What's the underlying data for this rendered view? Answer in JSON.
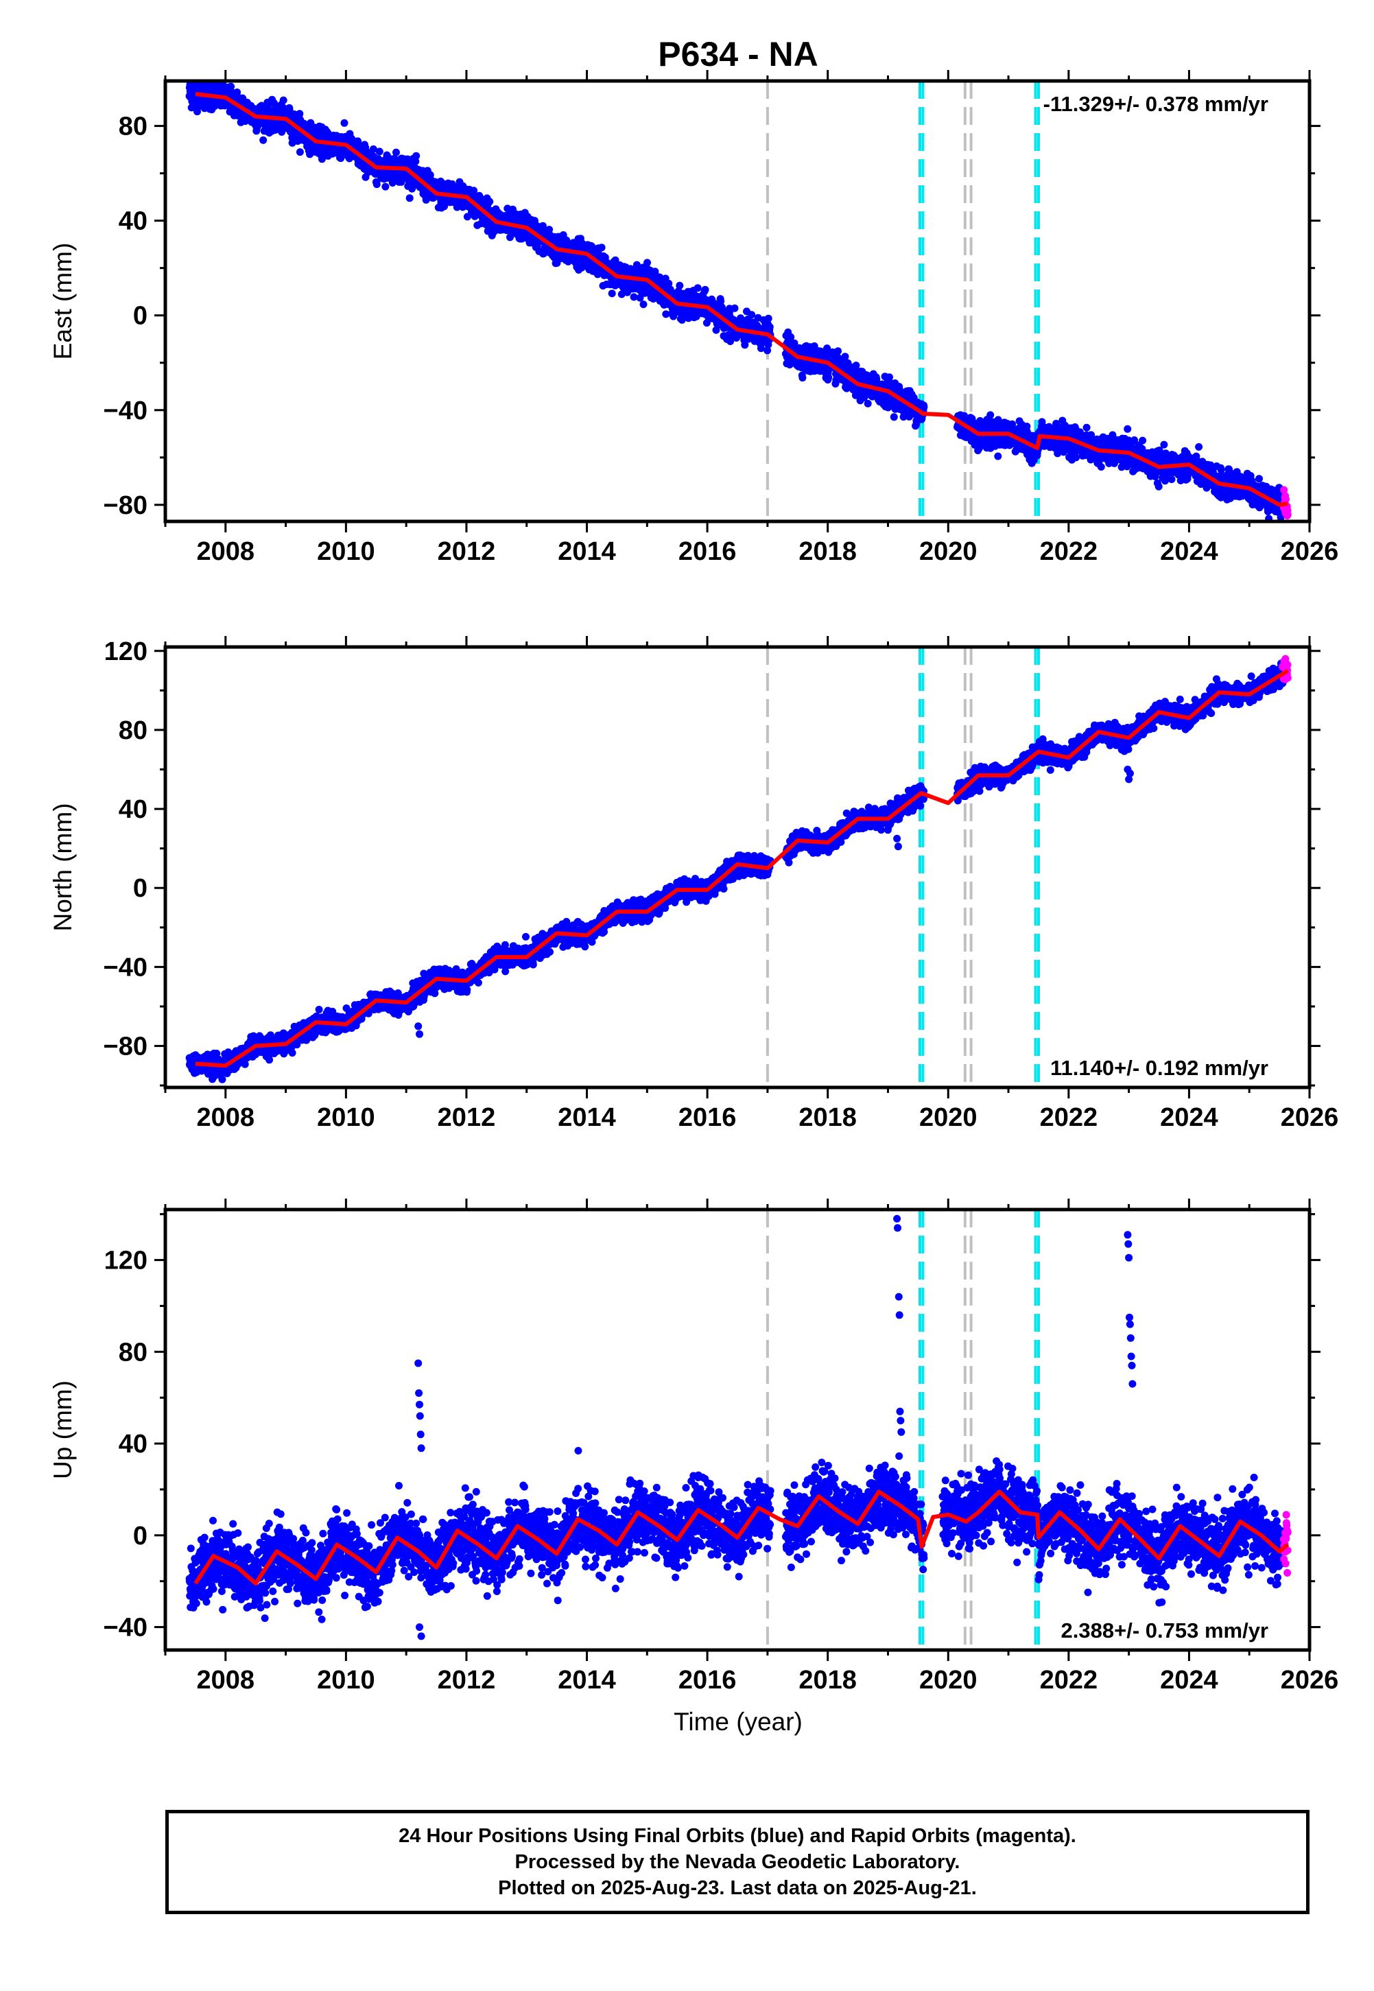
{
  "title": "P634 - NA",
  "colors": {
    "final_orbits": "#0000ff",
    "rapid_orbits": "#ff00ff",
    "model_fit": "#ff0000",
    "antenna_change_lines": "#00e5ee",
    "other_event_lines": "#c0c0c0",
    "frame": "#000000"
  },
  "x_axis": {
    "label": "Time (year)",
    "range": [
      2007.0,
      2026.0
    ],
    "ticks": [
      "2008",
      "2010",
      "2012",
      "2014",
      "2016",
      "2018",
      "2020",
      "2022",
      "2024",
      "2026"
    ],
    "tick_values": [
      2008,
      2010,
      2012,
      2014,
      2016,
      2018,
      2020,
      2022,
      2024,
      2026
    ]
  },
  "event_lines": [
    {
      "kind": "other",
      "year": 2017.0
    },
    {
      "kind": "antenna",
      "year": 2019.53
    },
    {
      "kind": "antenna",
      "year": 2019.58
    },
    {
      "kind": "other",
      "year": 2020.28
    },
    {
      "kind": "other",
      "year": 2020.38
    },
    {
      "kind": "antenna",
      "year": 2021.45
    },
    {
      "kind": "antenna",
      "year": 2021.5
    }
  ],
  "chart_data": [
    {
      "type": "scatter",
      "component": "east",
      "ylabel": "East (mm)",
      "ylim": [
        -87,
        99
      ],
      "yticks": [
        "80",
        "40",
        "0",
        "-40",
        "-80"
      ],
      "ytick_values": [
        80,
        40,
        0,
        -40,
        -80
      ],
      "rate_label": "-11.329+/- 0.378 mm/yr",
      "rate_position": "top-right",
      "rate": -11.329,
      "rate_sigma": 0.378,
      "data_start": 2007.4,
      "data_end": 2025.64,
      "rapid_start": 2025.45,
      "model_points": [
        [
          2007.5,
          93.5
        ],
        [
          2008.0,
          92
        ],
        [
          2008.5,
          84
        ],
        [
          2009.0,
          83
        ],
        [
          2009.5,
          73.5
        ],
        [
          2010.0,
          72
        ],
        [
          2010.5,
          62.5
        ],
        [
          2011.0,
          62
        ],
        [
          2011.5,
          51.5
        ],
        [
          2012.0,
          50
        ],
        [
          2012.5,
          39.5
        ],
        [
          2013.0,
          37
        ],
        [
          2013.5,
          28
        ],
        [
          2014.0,
          26
        ],
        [
          2014.5,
          16.5
        ],
        [
          2015.0,
          15
        ],
        [
          2015.5,
          5
        ],
        [
          2016.0,
          3.5
        ],
        [
          2016.5,
          -6
        ],
        [
          2017.0,
          -8
        ],
        [
          2017.5,
          -17.5
        ],
        [
          2018.0,
          -20
        ],
        [
          2018.5,
          -29
        ],
        [
          2019.0,
          -32
        ],
        [
          2019.5,
          -40
        ],
        [
          2019.58,
          -41.5
        ],
        [
          2020.0,
          -42
        ],
        [
          2020.5,
          -50
        ],
        [
          2021.0,
          -50
        ],
        [
          2021.48,
          -56
        ],
        [
          2021.52,
          -51
        ],
        [
          2022.0,
          -52
        ],
        [
          2022.5,
          -57
        ],
        [
          2023.0,
          -58
        ],
        [
          2023.5,
          -64
        ],
        [
          2024.0,
          -63
        ],
        [
          2024.5,
          -71
        ],
        [
          2025.0,
          -73
        ],
        [
          2025.5,
          -80
        ],
        [
          2025.64,
          -79.5
        ]
      ],
      "scatter_sigma": 2.8,
      "gaps": [
        [
          2017.05,
          2017.3
        ],
        [
          2019.6,
          2020.15
        ]
      ],
      "outliers": []
    },
    {
      "type": "scatter",
      "component": "north",
      "ylabel": "North (mm)",
      "ylim": [
        -101,
        122
      ],
      "yticks": [
        "120",
        "80",
        "40",
        "0",
        "-40",
        "-80"
      ],
      "ytick_values": [
        120,
        80,
        40,
        0,
        -40,
        -80
      ],
      "rate_label": "11.140+/- 0.192 mm/yr",
      "rate_position": "bottom-right",
      "rate": 11.14,
      "rate_sigma": 0.192,
      "data_start": 2007.4,
      "data_end": 2025.64,
      "rapid_start": 2025.45,
      "model_points": [
        [
          2007.5,
          -89
        ],
        [
          2008.0,
          -90
        ],
        [
          2008.5,
          -80
        ],
        [
          2009.0,
          -79
        ],
        [
          2009.5,
          -68
        ],
        [
          2010.0,
          -69
        ],
        [
          2010.5,
          -57
        ],
        [
          2011.0,
          -58
        ],
        [
          2011.5,
          -46
        ],
        [
          2012.0,
          -47
        ],
        [
          2012.5,
          -35
        ],
        [
          2013.0,
          -35
        ],
        [
          2013.5,
          -23
        ],
        [
          2014.0,
          -24
        ],
        [
          2014.5,
          -12
        ],
        [
          2015.0,
          -12
        ],
        [
          2015.5,
          -1
        ],
        [
          2016.0,
          -1
        ],
        [
          2016.5,
          12
        ],
        [
          2017.0,
          10
        ],
        [
          2017.5,
          24
        ],
        [
          2018.0,
          23
        ],
        [
          2018.5,
          35
        ],
        [
          2019.0,
          35
        ],
        [
          2019.55,
          48
        ],
        [
          2020.0,
          43
        ],
        [
          2020.5,
          57
        ],
        [
          2021.0,
          57
        ],
        [
          2021.5,
          69
        ],
        [
          2022.0,
          66
        ],
        [
          2022.5,
          79
        ],
        [
          2023.0,
          76
        ],
        [
          2023.5,
          89
        ],
        [
          2024.0,
          86
        ],
        [
          2024.5,
          99
        ],
        [
          2025.0,
          98
        ],
        [
          2025.64,
          110
        ]
      ],
      "scatter_sigma": 2.4,
      "gaps": [
        [
          2017.05,
          2017.3
        ],
        [
          2019.6,
          2020.15
        ]
      ],
      "outliers": [
        [
          2011.2,
          -70
        ],
        [
          2011.22,
          -74
        ],
        [
          2019.15,
          25
        ],
        [
          2019.17,
          21
        ],
        [
          2022.98,
          60
        ],
        [
          2023.0,
          55
        ],
        [
          2023.02,
          58
        ],
        [
          2025.55,
          112
        ],
        [
          2025.58,
          115
        ],
        [
          2025.6,
          116
        ]
      ]
    },
    {
      "type": "scatter",
      "component": "up",
      "ylabel": "Up (mm)",
      "ylim": [
        -50,
        142
      ],
      "yticks": [
        "120",
        "80",
        "40",
        "0",
        "-40"
      ],
      "ytick_values": [
        120,
        80,
        40,
        0,
        -40
      ],
      "rate_label": "2.388+/- 0.753 mm/yr",
      "rate_position": "bottom-right",
      "rate": 2.388,
      "rate_sigma": 0.753,
      "data_start": 2007.4,
      "data_end": 2025.64,
      "rapid_start": 2025.45,
      "model_points": [
        [
          2007.5,
          -21
        ],
        [
          2007.8,
          -9
        ],
        [
          2008.2,
          -14
        ],
        [
          2008.5,
          -21
        ],
        [
          2008.85,
          -7
        ],
        [
          2009.2,
          -13
        ],
        [
          2009.5,
          -19
        ],
        [
          2009.85,
          -4
        ],
        [
          2010.2,
          -10
        ],
        [
          2010.5,
          -16
        ],
        [
          2010.85,
          -1
        ],
        [
          2011.2,
          -7
        ],
        [
          2011.5,
          -14
        ],
        [
          2011.85,
          2
        ],
        [
          2012.2,
          -4
        ],
        [
          2012.5,
          -10
        ],
        [
          2012.85,
          4
        ],
        [
          2013.2,
          -2
        ],
        [
          2013.5,
          -8
        ],
        [
          2013.85,
          7
        ],
        [
          2014.2,
          2
        ],
        [
          2014.5,
          -4
        ],
        [
          2014.85,
          10
        ],
        [
          2015.2,
          4
        ],
        [
          2015.5,
          -2
        ],
        [
          2015.85,
          11
        ],
        [
          2016.2,
          5
        ],
        [
          2016.5,
          -1
        ],
        [
          2016.85,
          12
        ],
        [
          2017.2,
          7
        ],
        [
          2017.5,
          4
        ],
        [
          2017.85,
          17
        ],
        [
          2018.2,
          10
        ],
        [
          2018.5,
          5
        ],
        [
          2018.85,
          19
        ],
        [
          2019.2,
          13
        ],
        [
          2019.5,
          7
        ],
        [
          2019.56,
          -5
        ],
        [
          2019.75,
          8
        ],
        [
          2020.0,
          9
        ],
        [
          2020.3,
          6
        ],
        [
          2020.5,
          10
        ],
        [
          2020.85,
          19
        ],
        [
          2021.2,
          10
        ],
        [
          2021.48,
          9
        ],
        [
          2021.5,
          -1
        ],
        [
          2021.85,
          10
        ],
        [
          2022.2,
          2
        ],
        [
          2022.5,
          -6
        ],
        [
          2022.85,
          7
        ],
        [
          2023.2,
          -2
        ],
        [
          2023.5,
          -10
        ],
        [
          2023.85,
          4
        ],
        [
          2024.2,
          -3
        ],
        [
          2024.5,
          -9
        ],
        [
          2024.85,
          6
        ],
        [
          2025.2,
          0
        ],
        [
          2025.5,
          -7
        ],
        [
          2025.64,
          -4
        ]
      ],
      "scatter_sigma": 7.0,
      "gaps": [
        [
          2017.05,
          2017.3
        ],
        [
          2019.6,
          2019.9
        ]
      ],
      "outliers": [
        [
          2011.2,
          75
        ],
        [
          2011.21,
          62
        ],
        [
          2011.22,
          57
        ],
        [
          2011.23,
          52
        ],
        [
          2011.24,
          44
        ],
        [
          2011.25,
          38
        ],
        [
          2011.22,
          -40
        ],
        [
          2011.25,
          -44
        ],
        [
          2019.15,
          138
        ],
        [
          2019.16,
          134
        ],
        [
          2019.18,
          104
        ],
        [
          2019.19,
          96
        ],
        [
          2019.2,
          54
        ],
        [
          2019.21,
          50
        ],
        [
          2019.22,
          45
        ],
        [
          2022.98,
          131
        ],
        [
          2022.99,
          127
        ],
        [
          2023.0,
          121
        ],
        [
          2023.01,
          95
        ],
        [
          2023.02,
          92
        ],
        [
          2023.03,
          86
        ],
        [
          2023.04,
          78
        ],
        [
          2023.05,
          74
        ],
        [
          2023.06,
          66
        ]
      ]
    }
  ],
  "footer": {
    "line1": "24 Hour Positions Using Final Orbits (blue) and Rapid Orbits (magenta).",
    "line2": "Processed by the Nevada Geodetic Laboratory.",
    "line3": "Plotted on 2025-Aug-23. Last data on 2025-Aug-21."
  }
}
